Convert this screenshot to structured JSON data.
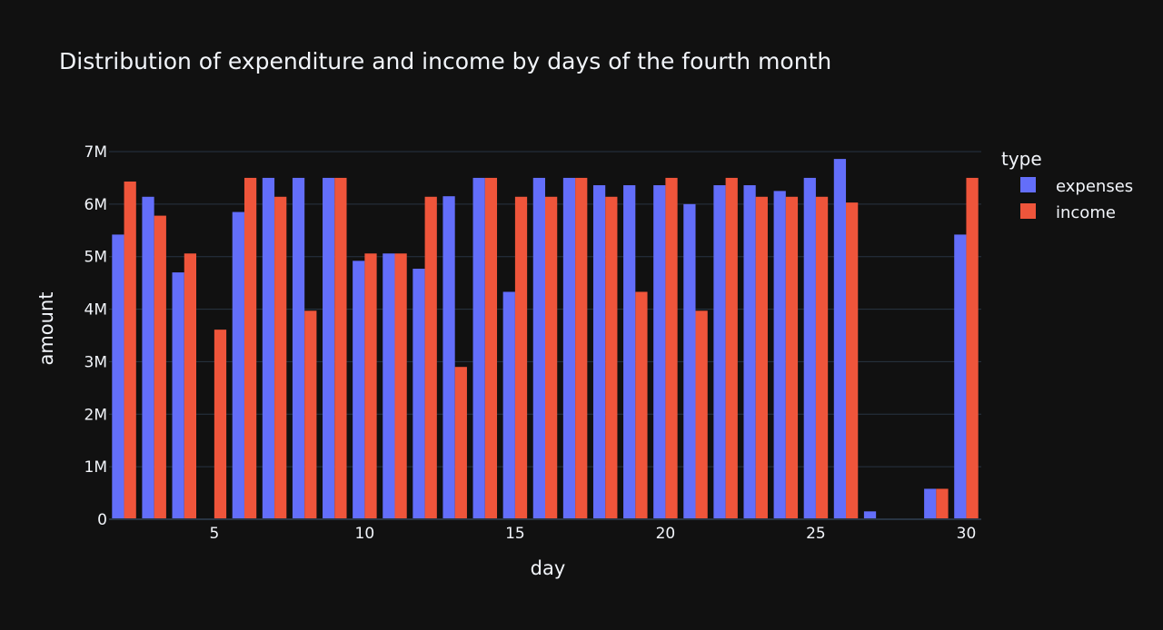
{
  "chart_data": {
    "type": "bar",
    "title": "Distribution of expenditure and income by days of the fourth month",
    "xlabel": "day",
    "ylabel": "amount",
    "x": [
      2,
      3,
      4,
      5,
      6,
      7,
      8,
      9,
      10,
      11,
      12,
      13,
      14,
      15,
      16,
      17,
      18,
      19,
      20,
      21,
      22,
      23,
      24,
      25,
      26,
      27,
      28,
      29,
      30
    ],
    "xticks": [
      5,
      10,
      15,
      20,
      25,
      30
    ],
    "xlim": [
      1.5,
      30.5
    ],
    "ylim": [
      0,
      7000000
    ],
    "yticks": [
      0,
      1000000,
      2000000,
      3000000,
      4000000,
      5000000,
      6000000,
      7000000
    ],
    "ytick_labels": [
      "0",
      "1M",
      "2M",
      "3M",
      "4M",
      "5M",
      "6M",
      "7M"
    ],
    "grid": true,
    "legend": {
      "title": "type",
      "position": "right"
    },
    "series": [
      {
        "name": "expenses",
        "color": "#636efa",
        "values": [
          5420000,
          6140000,
          4700000,
          0,
          5850000,
          6500000,
          6500000,
          6500000,
          4920000,
          5060000,
          4770000,
          6150000,
          6500000,
          4330000,
          6500000,
          6500000,
          6360000,
          6360000,
          6360000,
          6000000,
          6360000,
          6360000,
          6250000,
          6500000,
          6860000,
          150000,
          0,
          580000,
          5420000
        ]
      },
      {
        "name": "income",
        "color": "#ef553b",
        "values": [
          6430000,
          5780000,
          5060000,
          3610000,
          6500000,
          6140000,
          3970000,
          6500000,
          5060000,
          5060000,
          6140000,
          2900000,
          6500000,
          6140000,
          6140000,
          6500000,
          6140000,
          4330000,
          6500000,
          3970000,
          6500000,
          6140000,
          6140000,
          6140000,
          6030000,
          0,
          0,
          580000,
          6500000
        ]
      }
    ]
  }
}
